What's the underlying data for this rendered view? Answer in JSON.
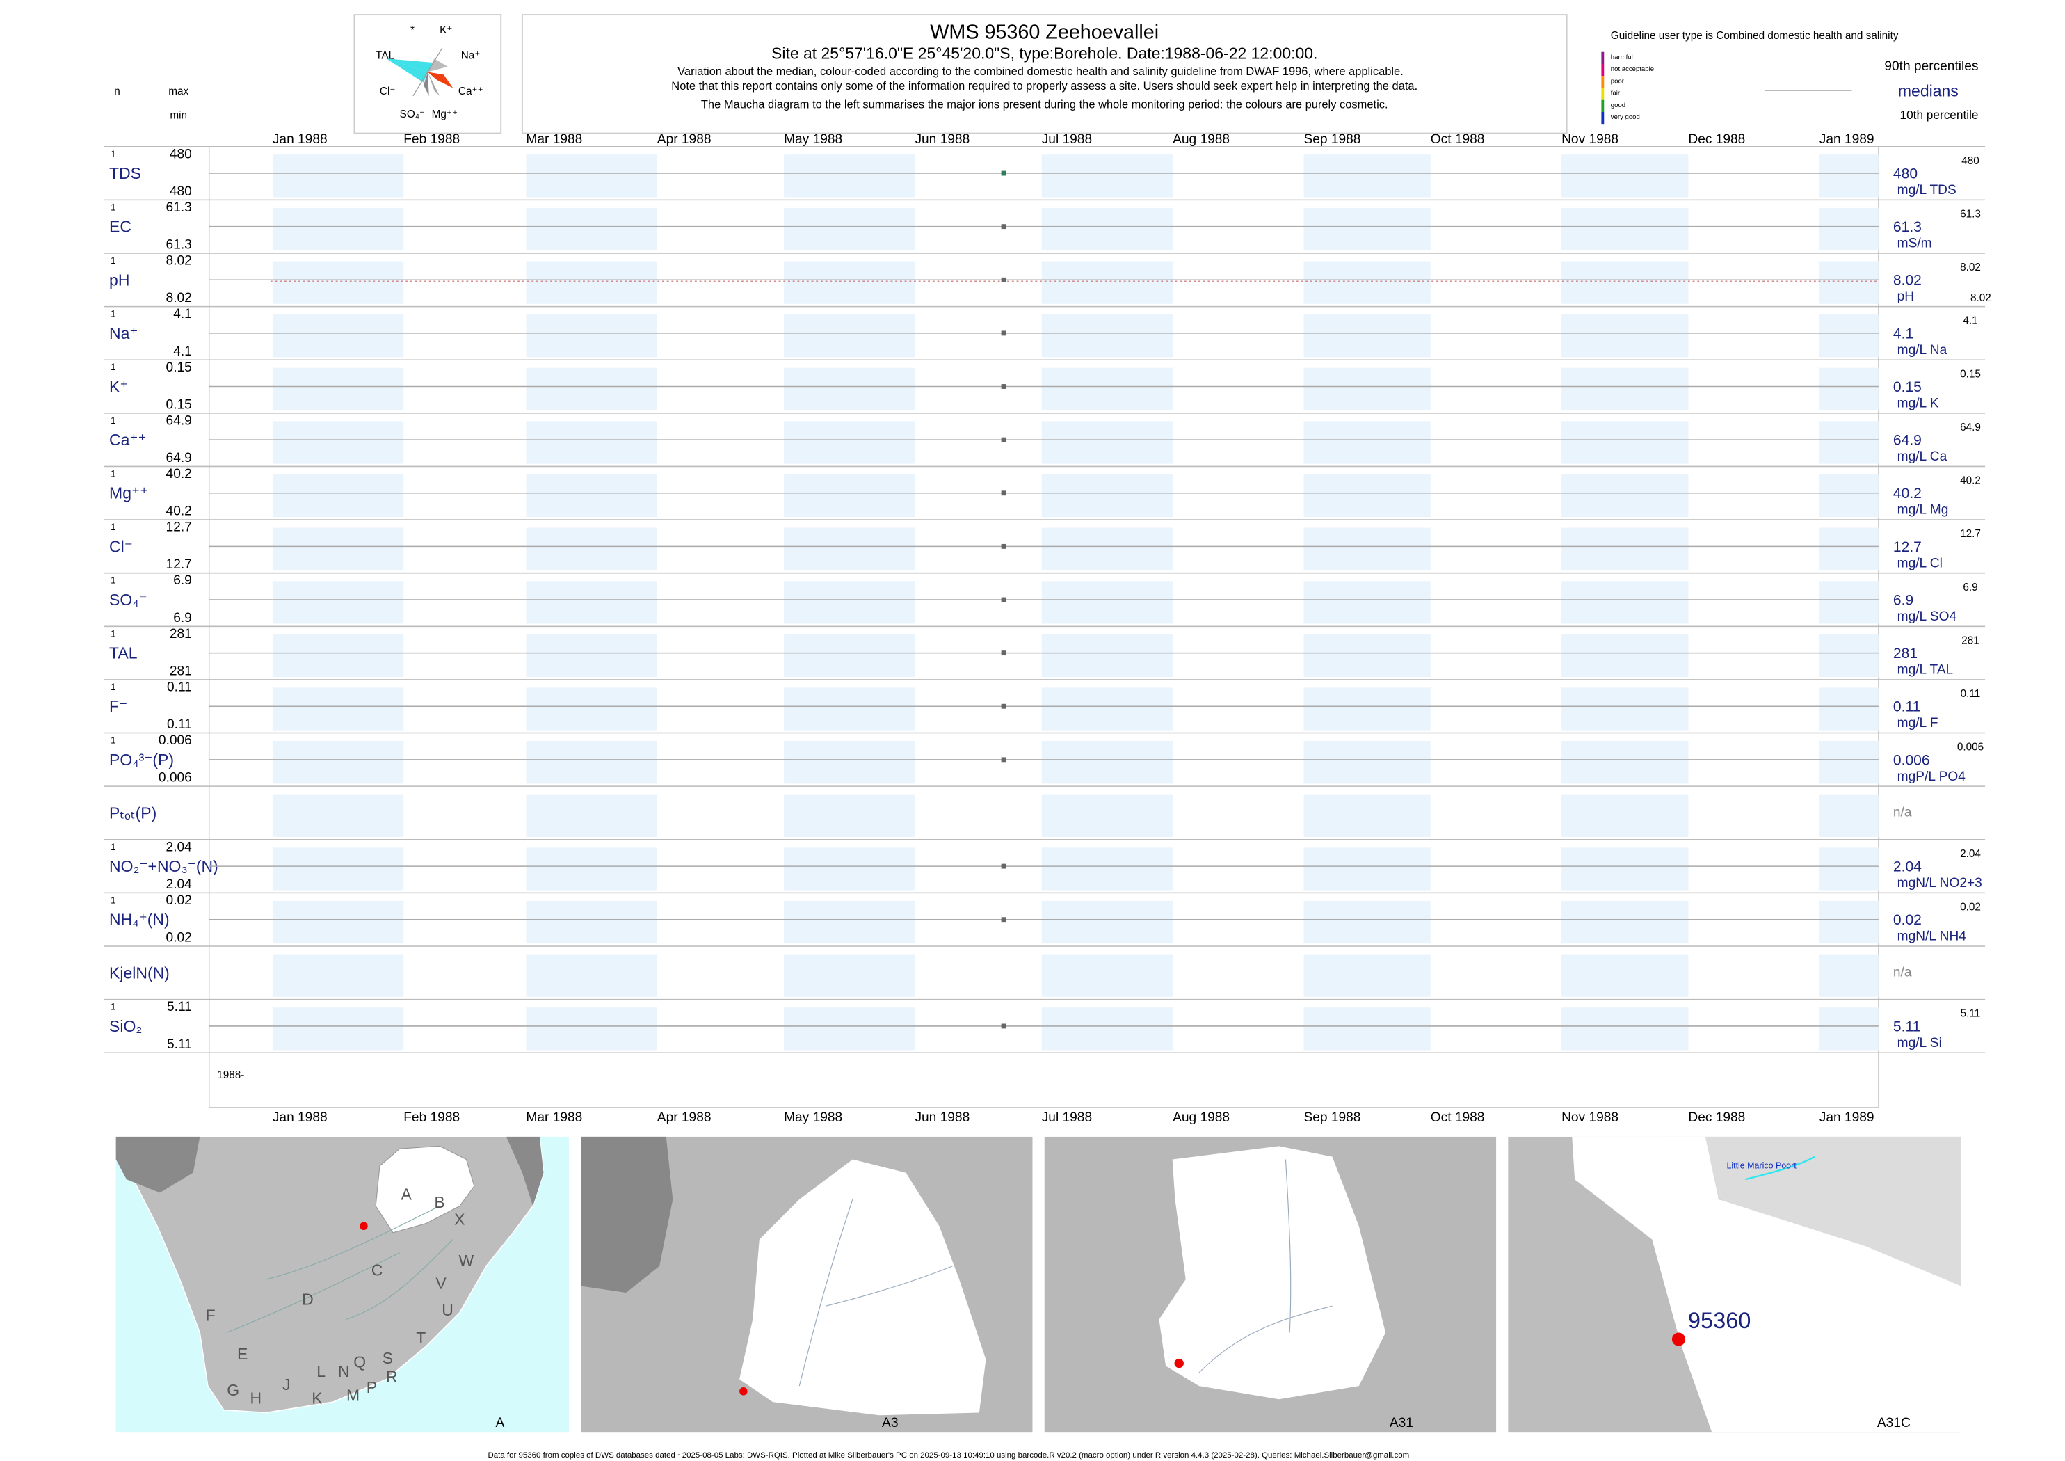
{
  "header": {
    "title": "WMS 95360  Zeehoevallei",
    "site": "Site at 25°57'16.0\"E 25°45'20.0\"S, type:Borehole. Date:1988-06-22 12:00:00.",
    "notes": [
      "Variation about the median,  colour-coded according to the combined domestic health and salinity guideline from DWAF 1996, where applicable.",
      "Note that this report contains only some of the information required to properly assess a site. Users should seek expert help in interpreting the data.",
      "The Maucha diagram to the left summarises the major ions present during the whole monitoring period: the colours are purely cosmetic."
    ]
  },
  "maucha": {
    "labels": [
      "*",
      "K⁺",
      "TAL",
      "Na⁺",
      "Cl⁻",
      "Ca⁺⁺",
      "SO₄⁼",
      "Mg⁺⁺"
    ]
  },
  "column_heads": {
    "n": "n",
    "max": "max",
    "min": "min"
  },
  "guideline": {
    "title": "Guideline user type is Combined domestic health and salinity",
    "classes": [
      {
        "label": "harmful",
        "color": "#8b1a8b"
      },
      {
        "label": "not acceptable",
        "color": "#e0007a"
      },
      {
        "label": "poor",
        "color": "#ff8c00"
      },
      {
        "label": "fair",
        "color": "#e8e000"
      },
      {
        "label": "good",
        "color": "#22a022"
      },
      {
        "label": "very good",
        "color": "#1030c0"
      }
    ]
  },
  "legend": {
    "p90": "90th percentiles",
    "median": "medians",
    "p10": "10th percentile"
  },
  "chart_data": {
    "type": "strip",
    "xlim": [
      "1987-12-17",
      "1989-01-15"
    ],
    "xticks": [
      {
        "value": "1988-01-01",
        "label": "Jan 1988"
      },
      {
        "value": "1988-02-01",
        "label": "Feb 1988"
      },
      {
        "value": "1988-03-01",
        "label": "Mar 1988"
      },
      {
        "value": "1988-04-01",
        "label": "Apr 1988"
      },
      {
        "value": "1988-05-01",
        "label": "May 1988"
      },
      {
        "value": "1988-06-01",
        "label": "Jun 1988"
      },
      {
        "value": "1988-07-01",
        "label": "Jul 1988"
      },
      {
        "value": "1988-08-01",
        "label": "Aug 1988"
      },
      {
        "value": "1988-09-01",
        "label": "Sep 1988"
      },
      {
        "value": "1988-10-01",
        "label": "Oct 1988"
      },
      {
        "value": "1988-11-01",
        "label": "Nov 1988"
      },
      {
        "value": "1988-12-01",
        "label": "Dec 1988"
      },
      {
        "value": "1989-01-01",
        "label": "Jan 1989"
      }
    ],
    "date_label": "1988-",
    "rows": [
      {
        "name": "TDS",
        "n": 1,
        "max": 480,
        "min": 480,
        "median": 480,
        "p90": 480,
        "unit": "mg/L TDS",
        "x": [
          "1988-06-22"
        ],
        "values": [
          480
        ],
        "color": "#2e7d5b"
      },
      {
        "name": "EC",
        "n": 1,
        "max": 61.3,
        "min": 61.3,
        "median": 61.3,
        "p90": 61.3,
        "unit": "mS/m",
        "x": [
          "1988-06-22"
        ],
        "values": [
          61.3
        ],
        "color": "#666666"
      },
      {
        "name": "pH",
        "n": 1,
        "max": 8.02,
        "min": 8.02,
        "median": 8.02,
        "p90": 8.02,
        "p10": 8.02,
        "unit": "pH",
        "x": [
          "1988-06-22"
        ],
        "values": [
          8.02
        ],
        "color": "#666666"
      },
      {
        "name": "Na⁺",
        "n": 1,
        "max": 4.1,
        "min": 4.1,
        "median": 4.1,
        "p90": 4.1,
        "unit": "mg/L Na",
        "x": [
          "1988-06-22"
        ],
        "values": [
          4.1
        ],
        "color": "#666666"
      },
      {
        "name": "K⁺",
        "n": 1,
        "max": 0.15,
        "min": 0.15,
        "median": 0.15,
        "p90": 0.15,
        "unit": "mg/L K",
        "x": [
          "1988-06-22"
        ],
        "values": [
          0.15
        ],
        "color": "#666666"
      },
      {
        "name": "Ca⁺⁺",
        "n": 1,
        "max": 64.9,
        "min": 64.9,
        "median": 64.9,
        "p90": 64.9,
        "unit": "mg/L Ca",
        "x": [
          "1988-06-22"
        ],
        "values": [
          64.9
        ],
        "color": "#666666"
      },
      {
        "name": "Mg⁺⁺",
        "n": 1,
        "max": 40.2,
        "min": 40.2,
        "median": 40.2,
        "p90": 40.2,
        "unit": "mg/L Mg",
        "x": [
          "1988-06-22"
        ],
        "values": [
          40.2
        ],
        "color": "#666666"
      },
      {
        "name": "Cl⁻",
        "n": 1,
        "max": 12.7,
        "min": 12.7,
        "median": 12.7,
        "p90": 12.7,
        "unit": "mg/L Cl",
        "x": [
          "1988-06-22"
        ],
        "values": [
          12.7
        ],
        "color": "#666666"
      },
      {
        "name": "SO₄⁼",
        "n": 1,
        "max": 6.9,
        "min": 6.9,
        "median": 6.9,
        "p90": 6.9,
        "unit": "mg/L SO4",
        "x": [
          "1988-06-22"
        ],
        "values": [
          6.9
        ],
        "color": "#666666"
      },
      {
        "name": "TAL",
        "n": 1,
        "max": 281,
        "min": 281,
        "median": 281,
        "p90": 281,
        "unit": "mg/L TAL",
        "x": [
          "1988-06-22"
        ],
        "values": [
          281
        ],
        "color": "#666666"
      },
      {
        "name": "F⁻",
        "n": 1,
        "max": 0.11,
        "min": 0.11,
        "median": 0.11,
        "p90": 0.11,
        "unit": "mg/L F",
        "x": [
          "1988-06-22"
        ],
        "values": [
          0.11
        ],
        "color": "#666666"
      },
      {
        "name": "PO₄³⁻(P)",
        "n": 1,
        "max": 0.006,
        "min": 0.006,
        "median": 0.006,
        "p90": 0.006,
        "unit": "mgP/L PO4",
        "x": [
          "1988-06-22"
        ],
        "values": [
          0.006
        ],
        "color": "#666666"
      },
      {
        "name": "Pₜₒₜ(P)",
        "na": "n/a"
      },
      {
        "name": "NO₂⁻+NO₃⁻(N)",
        "n": 1,
        "max": 2.04,
        "min": 2.04,
        "median": 2.04,
        "p90": 2.04,
        "unit": "mgN/L NO2+3",
        "x": [
          "1988-06-22"
        ],
        "values": [
          2.04
        ],
        "color": "#666666"
      },
      {
        "name": "NH₄⁺(N)",
        "n": 1,
        "max": 0.02,
        "min": 0.02,
        "median": 0.02,
        "p90": 0.02,
        "unit": "mgN/L NH4",
        "x": [
          "1988-06-22"
        ],
        "values": [
          0.02
        ],
        "color": "#666666"
      },
      {
        "name": "KjelN(N)",
        "na": "n/a"
      },
      {
        "name": "SiO₂",
        "n": 1,
        "max": 5.11,
        "min": 5.11,
        "median": 5.11,
        "p90": 5.11,
        "unit": "mg/L Si",
        "x": [
          "1988-06-22"
        ],
        "values": [
          5.11
        ],
        "color": "#666666"
      }
    ]
  },
  "maps": [
    {
      "label": "A",
      "regions": [
        "A",
        "B",
        "X",
        "W",
        "C",
        "V",
        "U",
        "D",
        "F",
        "T",
        "E",
        "S",
        "Q",
        "N",
        "L",
        "R",
        "J",
        "P",
        "G",
        "H",
        "K",
        "M"
      ]
    },
    {
      "label": "A3"
    },
    {
      "label": "A31"
    },
    {
      "label": "A31C",
      "place": "Little Marico Poort",
      "site": "95360"
    }
  ],
  "footer": "Data for 95360 from copies of DWS databases dated ~2025-08-05 Labs: DWS-RQIS. Plotted at Mike Silberbauer's PC on 2025-09-13 10:49:10 using barcode.R v20.2 (macro option) under R version 4.4.3 (2025-02-28). Queries: Michael.Silberbauer@gmail.com"
}
